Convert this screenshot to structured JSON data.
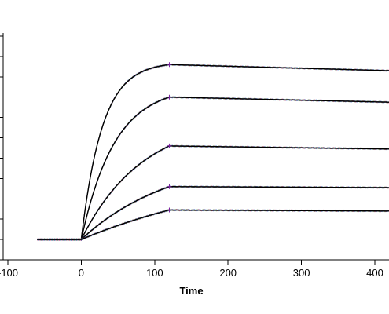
{
  "chart_data": {
    "type": "line",
    "title": "",
    "xlabel": "Time",
    "ylabel": "",
    "xlim": [
      -100,
      420
    ],
    "x_ticks": [
      -100,
      0,
      100,
      200,
      300,
      400
    ],
    "x_tick_labels": [
      "-100",
      "0",
      "100",
      "200",
      "300",
      "400"
    ],
    "ylim": [
      -1,
      10
    ],
    "y_tick_count": 12,
    "grid": false,
    "legend": "none",
    "baseline_start": -60,
    "association_start": 0,
    "dissociation_start": 120,
    "curve_color": "#000000",
    "noise_colors": [
      "#2e7d32",
      "#c2185b",
      "#1565c0"
    ],
    "series": [
      {
        "kind": "binding-curve",
        "values": {
          "baseline": 0,
          "t0": 0,
          "t_switch": 120,
          "plateau_at_switch": 8.6,
          "end_value": 8.3,
          "time_end": 420,
          "kobs": 0.035
        }
      },
      {
        "kind": "binding-curve",
        "values": {
          "baseline": 0,
          "t0": 0,
          "t_switch": 120,
          "plateau_at_switch": 7.0,
          "end_value": 6.75,
          "time_end": 420,
          "kobs": 0.022
        }
      },
      {
        "kind": "binding-curve",
        "values": {
          "baseline": 0,
          "t0": 0,
          "t_switch": 120,
          "plateau_at_switch": 4.6,
          "end_value": 4.45,
          "time_end": 420,
          "kobs": 0.012
        }
      },
      {
        "kind": "binding-curve",
        "values": {
          "baseline": 0,
          "t0": 0,
          "t_switch": 120,
          "plateau_at_switch": 2.6,
          "end_value": 2.55,
          "time_end": 420,
          "kobs": 0.008
        }
      },
      {
        "kind": "binding-curve",
        "values": {
          "baseline": 0,
          "t0": 0,
          "t_switch": 120,
          "plateau_at_switch": 1.45,
          "end_value": 1.4,
          "time_end": 420,
          "kobs": 0.004
        }
      }
    ]
  }
}
